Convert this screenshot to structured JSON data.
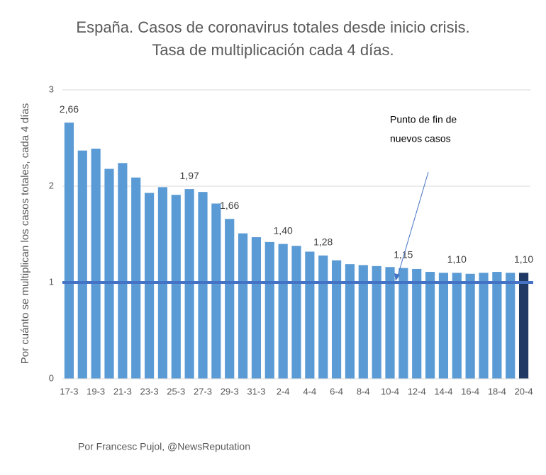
{
  "chart_data": {
    "type": "bar",
    "title": [
      "España. Casos de coronavirus totales desde inicio crisis.",
      "Tasa de multiplicación cada 4 días."
    ],
    "y_label": "Por cuánto se multiplican los casos totales, cada 4 días",
    "categories": [
      "17-3",
      null,
      "19-3",
      null,
      "21-3",
      null,
      "23-3",
      null,
      "25-3",
      null,
      "27-3",
      null,
      "29-3",
      null,
      "31-3",
      null,
      "2-4",
      null,
      "4-4",
      null,
      "6-4",
      null,
      "8-4",
      null,
      "10-4",
      null,
      "12-4",
      null,
      "14-4",
      null,
      "16-4",
      null,
      "18-4",
      null,
      "20-4"
    ],
    "values": [
      2.66,
      2.37,
      2.39,
      2.18,
      2.24,
      2.09,
      1.93,
      1.99,
      1.91,
      1.97,
      1.94,
      1.82,
      1.66,
      1.51,
      1.47,
      1.42,
      1.4,
      1.38,
      1.32,
      1.28,
      1.23,
      1.19,
      1.18,
      1.17,
      1.16,
      1.15,
      1.14,
      1.11,
      1.1,
      1.1,
      1.09,
      1.1,
      1.11,
      1.1,
      1.1
    ],
    "value_labels": [
      "2,66",
      null,
      null,
      null,
      null,
      null,
      null,
      null,
      null,
      "1,97",
      null,
      null,
      "1,66",
      null,
      null,
      null,
      "1,40",
      null,
      null,
      "1,28",
      null,
      null,
      null,
      null,
      null,
      "1,15",
      null,
      null,
      null,
      "1,10",
      null,
      null,
      null,
      null,
      "1,10"
    ],
    "color": "#5b9bd5",
    "highlight": {
      "index": 34,
      "color": "#1f3864"
    },
    "reference_line": {
      "value": 1,
      "color": "#4472c4"
    },
    "ylim": [
      0,
      3
    ],
    "yticks": [
      0,
      1,
      2,
      3
    ],
    "grid": true,
    "annotation": [
      "Punto de fin de",
      "nuevos casos"
    ],
    "footer": "Por Francesc Pujol, @NewsReputation"
  }
}
